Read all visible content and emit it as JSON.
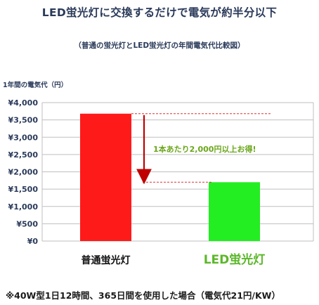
{
  "title": "LED蛍光灯に交換するだけで電気が約半分以下",
  "subtitle": "（普通の蛍光灯とLED蛍光灯の年間電気代比較図）",
  "footnote": "※40W型1日12時間、365日間を使用した場合（電気代21円/KW）",
  "colors": {
    "axis_text": "#2a3a5a",
    "grid": "#bfbfbf",
    "bar_normal": "#ff1a1a",
    "bar_led": "#22ee22",
    "arrow": "#c00000",
    "guide_line": "#e03030",
    "annotation": "#6aa619",
    "led_label": "#5cb82a",
    "normal_label": "#111111"
  },
  "chart_data": {
    "type": "bar",
    "ylabel": "1年間の電気代（円）",
    "ylim": [
      0,
      4000
    ],
    "y_ticks": [
      {
        "value": 0,
        "label": "¥0"
      },
      {
        "value": 500,
        "label": "¥500"
      },
      {
        "value": 1000,
        "label": "¥1,000"
      },
      {
        "value": 1500,
        "label": "¥1,500"
      },
      {
        "value": 2000,
        "label": "¥2,000"
      },
      {
        "value": 2500,
        "label": "¥2,500"
      },
      {
        "value": 3000,
        "label": "¥3,000"
      },
      {
        "value": 3500,
        "label": "¥3,500"
      },
      {
        "value": 4000,
        "label": "¥4,000"
      }
    ],
    "grid": true,
    "categories": [
      "普通蛍光灯",
      "LED蛍光灯"
    ],
    "values": [
      3680,
      1700
    ],
    "annotation": "1本あたり2,000円以上お得!"
  }
}
